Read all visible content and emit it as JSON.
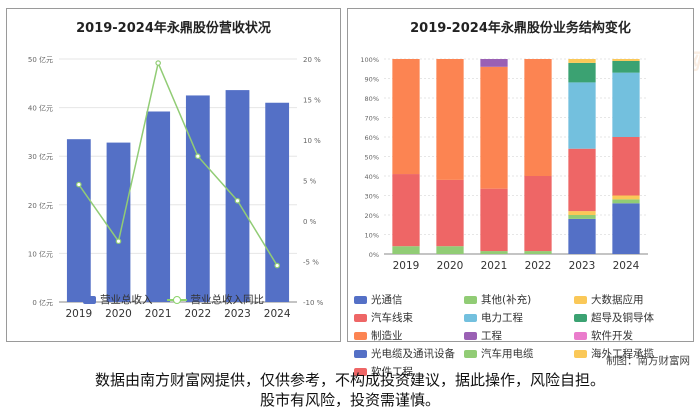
{
  "panels": {
    "left": {
      "title": "2019-2024年永鼎股份营收状况"
    },
    "right": {
      "title": "2019-2024年永鼎股份业务结构变化"
    }
  },
  "watermark": {
    "cn": "南方财富网",
    "en": "Southmoney.com"
  },
  "credit": "制图：南方财富网",
  "disclaimer": {
    "line1": "数据由南方财富网提供，仅供参考，不构成投资建议，据此操作，风险自担。",
    "line2": "股市有风险，投资需谨慎。"
  },
  "colors": {
    "bar": "#5470c6",
    "line": "#91cc75",
    "grid": "#e6e6e6"
  },
  "chart_data": [
    {
      "type": "bar",
      "title": "2019-2024年永鼎股份营收状况",
      "categories": [
        "2019",
        "2020",
        "2021",
        "2022",
        "2023",
        "2024"
      ],
      "y_left": {
        "ticks": [
          "0 亿元",
          "10 亿元",
          "20 亿元",
          "30 亿元",
          "40 亿元",
          "50 亿元"
        ],
        "min": 0,
        "max": 50
      },
      "y_right": {
        "ticks": [
          "-10 %",
          "-5 %",
          "0 %",
          "5 %",
          "10 %",
          "15 %",
          "20 %"
        ],
        "min": -10,
        "max": 20
      },
      "series": [
        {
          "name": "营业总收入",
          "kind": "bar",
          "axis": "left",
          "color": "#5470c6",
          "values": [
            33.5,
            32.8,
            39.2,
            42.5,
            43.6,
            41.0
          ]
        },
        {
          "name": "营业总收入同比",
          "kind": "line",
          "axis": "right",
          "color": "#91cc75",
          "values": [
            4.5,
            -2.5,
            19.5,
            8.0,
            2.5,
            -5.5
          ]
        }
      ],
      "legend_position": "bottom",
      "grid": true
    },
    {
      "type": "bar",
      "stacked": true,
      "title": "2019-2024年永鼎股份业务结构变化",
      "categories": [
        "2019",
        "2020",
        "2021",
        "2022",
        "2023",
        "2024"
      ],
      "y": {
        "ticks": [
          "0%",
          "10%",
          "20%",
          "30%",
          "40%",
          "50%",
          "60%",
          "70%",
          "80%",
          "90%",
          "100%"
        ],
        "min": 0,
        "max": 100
      },
      "series": [
        {
          "name": "光通信",
          "color": "#5470c6",
          "values": [
            0,
            0,
            0,
            0,
            18,
            26
          ]
        },
        {
          "name": "其他(补充)",
          "color": "#91cc75",
          "values": [
            4,
            4,
            1.5,
            1.5,
            2,
            2
          ]
        },
        {
          "name": "大数据应用",
          "color": "#fac858",
          "values": [
            0,
            0,
            0,
            0,
            2,
            2
          ]
        },
        {
          "name": "汽车线束",
          "color": "#ee6666",
          "values": [
            37,
            34,
            32,
            38.5,
            32,
            30
          ]
        },
        {
          "name": "电力工程",
          "color": "#73c0de",
          "values": [
            0,
            0,
            0,
            0,
            34,
            33
          ]
        },
        {
          "name": "超导及铜导体",
          "color": "#3ba272",
          "values": [
            0,
            0,
            0,
            0,
            10,
            6
          ]
        },
        {
          "name": "制造业",
          "color": "#fc8452",
          "values": [
            59,
            62,
            62.5,
            60,
            0,
            0
          ]
        },
        {
          "name": "工程",
          "color": "#9a60b4",
          "values": [
            0,
            0,
            4,
            0,
            0,
            0
          ]
        },
        {
          "name": "软件开发",
          "color": "#ea7ccc",
          "values": [
            0,
            0,
            0,
            0,
            0,
            0
          ]
        },
        {
          "name": "光电缆及通讯设备",
          "color": "#5470c6",
          "values": [
            0,
            0,
            0,
            0,
            0,
            0
          ]
        },
        {
          "name": "汽车用电缆",
          "color": "#91cc75",
          "values": [
            0,
            0,
            0,
            0,
            0,
            0
          ]
        },
        {
          "name": "海外工程承揽",
          "color": "#fac858",
          "values": [
            0,
            0,
            0,
            0,
            2,
            1
          ]
        },
        {
          "name": "软件工程",
          "color": "#ee6666",
          "values": [
            0,
            0,
            0,
            0,
            0,
            0
          ]
        }
      ],
      "legend_position": "bottom",
      "grid": true
    }
  ]
}
